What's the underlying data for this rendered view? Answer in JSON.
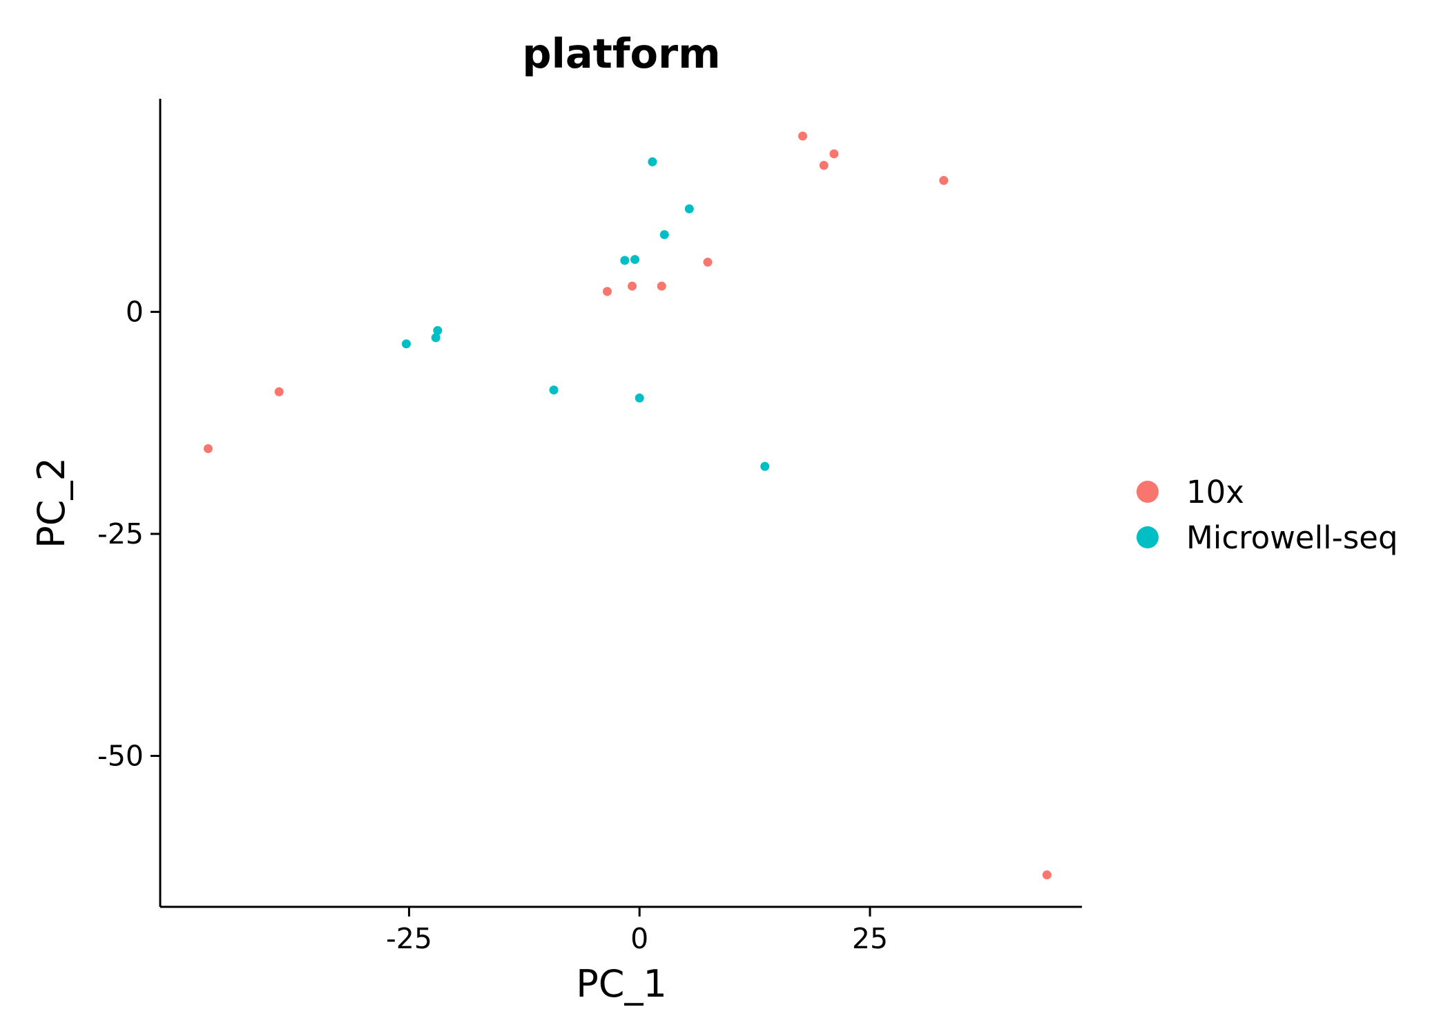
{
  "chart_data": {
    "type": "scatter",
    "title": "platform",
    "xlabel": "PC_1",
    "ylabel": "PC_2",
    "xlim": [
      -52,
      48
    ],
    "ylim": [
      -67,
      24
    ],
    "x_ticks": [
      {
        "value": -25,
        "label": "-25"
      },
      {
        "value": 0,
        "label": "0"
      },
      {
        "value": 25,
        "label": "25"
      }
    ],
    "y_ticks": [
      {
        "value": 0,
        "label": "0"
      },
      {
        "value": -25,
        "label": "-25"
      },
      {
        "value": -50,
        "label": "-50"
      }
    ],
    "grid": false,
    "legend_position": "right",
    "series": [
      {
        "name": "10x",
        "color": "#F8766D",
        "points": [
          {
            "x": -46.8,
            "y": -15.4
          },
          {
            "x": -39.1,
            "y": -9.0
          },
          {
            "x": -3.5,
            "y": 2.3
          },
          {
            "x": -0.8,
            "y": 2.9
          },
          {
            "x": 2.4,
            "y": 2.9
          },
          {
            "x": 7.4,
            "y": 5.6
          },
          {
            "x": 17.7,
            "y": 19.8
          },
          {
            "x": 20.0,
            "y": 16.5
          },
          {
            "x": 21.1,
            "y": 17.8
          },
          {
            "x": 33.0,
            "y": 14.8
          },
          {
            "x": 44.2,
            "y": -63.4
          }
        ]
      },
      {
        "name": "Microwell-seq",
        "color": "#00BFC4",
        "points": [
          {
            "x": -25.3,
            "y": -3.6
          },
          {
            "x": -21.9,
            "y": -2.1
          },
          {
            "x": -22.1,
            "y": -2.9
          },
          {
            "x": -9.3,
            "y": -8.8
          },
          {
            "x": -1.6,
            "y": 5.8
          },
          {
            "x": -0.5,
            "y": 5.9
          },
          {
            "x": 0.0,
            "y": -9.7
          },
          {
            "x": 1.4,
            "y": 16.9
          },
          {
            "x": 2.7,
            "y": 8.7
          },
          {
            "x": 5.4,
            "y": 11.6
          },
          {
            "x": 13.6,
            "y": -17.4
          }
        ]
      }
    ]
  }
}
